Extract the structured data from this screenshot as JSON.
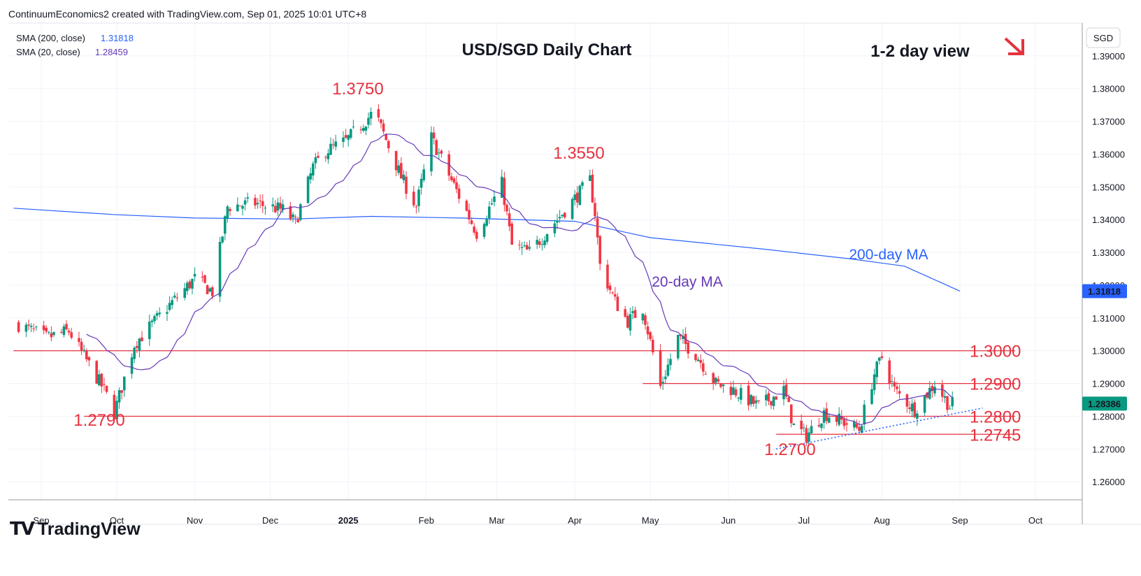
{
  "header": {
    "credit": "ContinuumEconomics2 created with TradingView.com, Sep 01, 2025 10:01 UTC+8"
  },
  "legend": {
    "sma200_label": "SMA (200, close)",
    "sma200_value": "1.31818",
    "sma20_label": "SMA (20, close)",
    "sma20_value": "1.28459"
  },
  "currency": "SGD",
  "brand": "TradingView",
  "colors": {
    "up": "#089981",
    "down": "#f23645",
    "sma200": "#2962ff",
    "sma20": "#673ab7",
    "level": "#e5323e",
    "trendline": "#2962ff",
    "arrow": "#e5323e",
    "price_badge": "#089981"
  },
  "chart_data": {
    "type": "candlestick",
    "title": "USD/SGD Daily Chart",
    "subtitle": "1-2 day view",
    "direction_icon": "arrow-down-right-icon",
    "x_axis_labels": [
      "Sep",
      "Oct",
      "Nov",
      "Dec",
      "2025",
      "Feb",
      "Mar",
      "Apr",
      "May",
      "Jun",
      "Jul",
      "Aug",
      "Sep",
      "Oct"
    ],
    "y_ticks": [
      "1.26000",
      "1.27000",
      "1.28000",
      "1.29000",
      "1.30000",
      "1.31000",
      "1.32000",
      "1.33000",
      "1.34000",
      "1.35000",
      "1.36000",
      "1.37000",
      "1.38000",
      "1.39000"
    ],
    "y_range": [
      1.2545,
      1.4
    ],
    "last_price": "1.28386",
    "sma200_badge": "1.31818",
    "levels": [
      {
        "label": "1.3000",
        "value": 1.3
      },
      {
        "label": "1.2900",
        "value": 1.29
      },
      {
        "label": "1.2800",
        "value": 1.28
      },
      {
        "label": "1.2745",
        "value": 1.2745
      }
    ],
    "annotations": [
      {
        "label": "1.3750",
        "value": 1.375
      },
      {
        "label": "1.3550",
        "value": 1.355
      },
      {
        "label": "1.2790",
        "value": 1.279
      },
      {
        "label": "1.2700",
        "value": 1.27
      },
      {
        "label": "200-day MA"
      },
      {
        "label": "20-day MA"
      }
    ],
    "anchors": [
      [
        "2024-08-23",
        1.308
      ],
      [
        "2024-09-03",
        1.304
      ],
      [
        "2024-09-12",
        1.306
      ],
      [
        "2024-09-26",
        1.288
      ],
      [
        "2024-09-30",
        1.281
      ],
      [
        "2024-10-08",
        1.302
      ],
      [
        "2024-10-22",
        1.314
      ],
      [
        "2024-11-01",
        1.322
      ],
      [
        "2024-11-08",
        1.318
      ],
      [
        "2024-11-14",
        1.344
      ],
      [
        "2024-11-25",
        1.345
      ],
      [
        "2024-12-06",
        1.343
      ],
      [
        "2024-12-11",
        1.339
      ],
      [
        "2024-12-18",
        1.356
      ],
      [
        "2024-12-23",
        1.361
      ],
      [
        "2024-12-31",
        1.364
      ],
      [
        "2025-01-10",
        1.372
      ],
      [
        "2025-01-13",
        1.37
      ],
      [
        "2025-01-22",
        1.353
      ],
      [
        "2025-01-28",
        1.344
      ],
      [
        "2025-02-03",
        1.365
      ],
      [
        "2025-02-11",
        1.352
      ],
      [
        "2025-02-21",
        1.336
      ],
      [
        "2025-03-03",
        1.351
      ],
      [
        "2025-03-07",
        1.332
      ],
      [
        "2025-03-14",
        1.33
      ],
      [
        "2025-03-26",
        1.341
      ],
      [
        "2025-04-07",
        1.352
      ],
      [
        "2025-04-09",
        1.342
      ],
      [
        "2025-04-11",
        1.326
      ],
      [
        "2025-04-17",
        1.315
      ],
      [
        "2025-04-22",
        1.309
      ],
      [
        "2025-04-28",
        1.313
      ],
      [
        "2025-05-05",
        1.289
      ],
      [
        "2025-05-12",
        1.304
      ],
      [
        "2025-05-19",
        1.299
      ],
      [
        "2025-05-27",
        1.29
      ],
      [
        "2025-06-03",
        1.288
      ],
      [
        "2025-06-13",
        1.283
      ],
      [
        "2025-06-23",
        1.288
      ],
      [
        "2025-06-27",
        1.277
      ],
      [
        "2025-07-02",
        1.274
      ],
      [
        "2025-07-09",
        1.281
      ],
      [
        "2025-07-23",
        1.276
      ],
      [
        "2025-07-29",
        1.293
      ],
      [
        "2025-08-01",
        1.298
      ],
      [
        "2025-08-06",
        1.288
      ],
      [
        "2025-08-14",
        1.282
      ],
      [
        "2025-08-22",
        1.29
      ],
      [
        "2025-08-28",
        1.283
      ],
      [
        "2025-08-29",
        1.2838
      ]
    ]
  }
}
